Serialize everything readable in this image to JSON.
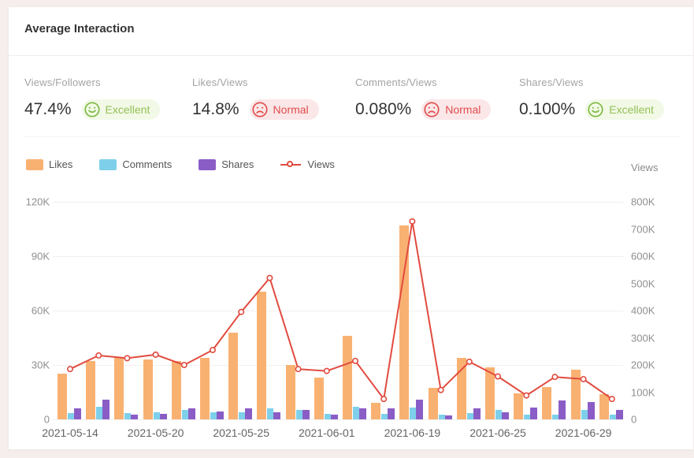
{
  "page": {
    "title": "Average Interaction"
  },
  "metrics": [
    {
      "label": "Views/Followers",
      "value": "47.4%",
      "rating": "Excellent",
      "sentiment": "positive"
    },
    {
      "label": "Likes/Views",
      "value": "14.8%",
      "rating": "Normal",
      "sentiment": "negative"
    },
    {
      "label": "Comments/Views",
      "value": "0.080%",
      "rating": "Normal",
      "sentiment": "negative"
    },
    {
      "label": "Shares/Views",
      "value": "0.100%",
      "rating": "Excellent",
      "sentiment": "positive"
    }
  ],
  "colors": {
    "likes": "#f9b172",
    "comments": "#7ed0ea",
    "shares": "#8a5dc6",
    "views_line": "#e14b3f",
    "positive": "#94c156",
    "negative": "#e04b4b"
  },
  "chart_data": {
    "type": "bar",
    "subtype": "grouped-bars-with-line-overlay",
    "group_count": 20,
    "x_tick_labels": [
      {
        "group_index": 0,
        "label": "2021-05-14"
      },
      {
        "group_index": 3,
        "label": "2021-05-20"
      },
      {
        "group_index": 6,
        "label": "2021-05-25"
      },
      {
        "group_index": 9,
        "label": "2021-06-01"
      },
      {
        "group_index": 12,
        "label": "2021-06-19"
      },
      {
        "group_index": 15,
        "label": "2021-06-25"
      },
      {
        "group_index": 18,
        "label": "2021-06-29"
      }
    ],
    "left_axis": {
      "min": 0,
      "max": 120000,
      "ticks": [
        "0",
        "30K",
        "60K",
        "90K",
        "120K"
      ]
    },
    "right_axis": {
      "min": 0,
      "max": 800000,
      "ticks": [
        "0",
        "100K",
        "200K",
        "300K",
        "400K",
        "500K",
        "600K",
        "700K",
        "800K"
      ],
      "title": "Views"
    },
    "grid": true,
    "legend_position": "top-left",
    "series": [
      {
        "name": "Likes",
        "type": "bar",
        "axis": "left",
        "color": "#f9b172",
        "values": [
          25000,
          32000,
          34000,
          33000,
          32000,
          34000,
          48000,
          70500,
          30000,
          23000,
          46000,
          9000,
          107000,
          17500,
          34000,
          28500,
          14300,
          18000,
          27400,
          14000
        ]
      },
      {
        "name": "Comments",
        "type": "bar",
        "axis": "left",
        "color": "#7ed0ea",
        "values": [
          3500,
          7000,
          3500,
          4000,
          5000,
          4000,
          4000,
          6000,
          5000,
          3000,
          7000,
          3000,
          6500,
          2500,
          3500,
          5000,
          2600,
          2600,
          5100,
          2600
        ]
      },
      {
        "name": "Shares",
        "type": "bar",
        "axis": "left",
        "color": "#8a5dc6",
        "values": [
          6000,
          11000,
          2500,
          3000,
          6000,
          4500,
          6000,
          4000,
          5000,
          2500,
          6000,
          6000,
          11000,
          2000,
          6000,
          4000,
          6500,
          10600,
          9700,
          5000
        ]
      },
      {
        "name": "Views",
        "type": "line",
        "axis": "right",
        "color": "#e14b3f",
        "values": [
          185000,
          235000,
          225000,
          238000,
          200000,
          255000,
          395000,
          520000,
          185000,
          178000,
          215000,
          75000,
          728000,
          108000,
          212000,
          158000,
          88000,
          156000,
          148000,
          75000
        ]
      }
    ]
  }
}
